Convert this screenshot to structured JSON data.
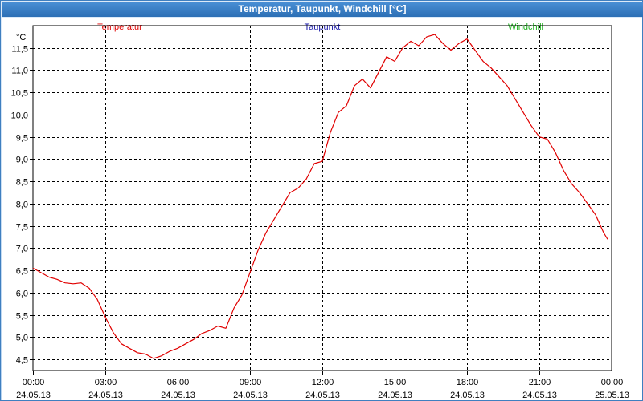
{
  "window": {
    "title": "Temperatur, Taupunkt, Windchill [°C]"
  },
  "colors": {
    "temperatur": "#e00000",
    "taupunkt": "#1a1aa8",
    "windchill": "#1fb01f",
    "grid": "#000000"
  },
  "chart_data": {
    "type": "line",
    "ylabel": "°C",
    "ylim": [
      4.25,
      12.0
    ],
    "grid": true,
    "legend_placement": "top",
    "legend": [
      "Temperatur",
      "Taupunkt",
      "Windchill"
    ],
    "y_ticks": [
      "4,5",
      "5,0",
      "5,5",
      "6,0",
      "6,5",
      "7,0",
      "7,5",
      "8,0",
      "8,5",
      "9,0",
      "9,5",
      "10,0",
      "10,5",
      "11,0",
      "11,5"
    ],
    "x_ticks": [
      {
        "time": "00:00",
        "date": "24.05.13"
      },
      {
        "time": "03:00",
        "date": "24.05.13"
      },
      {
        "time": "06:00",
        "date": "24.05.13"
      },
      {
        "time": "09:00",
        "date": "24.05.13"
      },
      {
        "time": "12:00",
        "date": "24.05.13"
      },
      {
        "time": "15:00",
        "date": "24.05.13"
      },
      {
        "time": "18:00",
        "date": "24.05.13"
      },
      {
        "time": "21:00",
        "date": "24.05.13"
      },
      {
        "time": "00:00",
        "date": "25.05.13"
      }
    ],
    "series": [
      {
        "name": "Temperatur",
        "x": [
          "00:00",
          "00:20",
          "00:40",
          "01:00",
          "01:20",
          "01:40",
          "02:00",
          "02:20",
          "02:40",
          "03:00",
          "03:20",
          "03:40",
          "04:00",
          "04:20",
          "04:40",
          "05:00",
          "05:20",
          "05:40",
          "06:00",
          "06:20",
          "06:40",
          "07:00",
          "07:20",
          "07:40",
          "08:00",
          "08:20",
          "08:40",
          "09:00",
          "09:20",
          "09:40",
          "10:00",
          "10:20",
          "10:40",
          "11:00",
          "11:20",
          "11:40",
          "12:00",
          "12:20",
          "12:40",
          "13:00",
          "13:20",
          "13:40",
          "14:00",
          "14:20",
          "14:40",
          "15:00",
          "15:20",
          "15:40",
          "16:00",
          "16:20",
          "16:40",
          "17:00",
          "17:20",
          "17:40",
          "18:00",
          "18:20",
          "18:40",
          "19:00",
          "19:20",
          "19:40",
          "20:00",
          "20:20",
          "20:40",
          "21:00",
          "21:20",
          "21:40",
          "22:00",
          "22:20",
          "22:40",
          "23:00",
          "23:20",
          "23:40",
          "23:50"
        ],
        "values": [
          6.55,
          6.45,
          6.35,
          6.3,
          6.22,
          6.2,
          6.22,
          6.1,
          5.85,
          5.45,
          5.1,
          4.85,
          4.75,
          4.65,
          4.62,
          4.52,
          4.58,
          4.68,
          4.75,
          4.85,
          4.95,
          5.08,
          5.15,
          5.25,
          5.2,
          5.65,
          5.95,
          6.45,
          6.95,
          7.35,
          7.65,
          7.95,
          8.25,
          8.35,
          8.55,
          8.9,
          8.95,
          9.6,
          10.05,
          10.2,
          10.65,
          10.8,
          10.6,
          10.95,
          11.3,
          11.2,
          11.5,
          11.65,
          11.55,
          11.75,
          11.8,
          11.6,
          11.45,
          11.6,
          11.7,
          11.45,
          11.2,
          11.05,
          10.85,
          10.65,
          10.35,
          10.05,
          9.75,
          9.5,
          9.45,
          9.15,
          8.75,
          8.45,
          8.25,
          8.0,
          7.75,
          7.35,
          7.2
        ]
      },
      {
        "name": "Taupunkt",
        "x": [],
        "values": []
      },
      {
        "name": "Windchill",
        "x": [],
        "values": []
      }
    ]
  }
}
